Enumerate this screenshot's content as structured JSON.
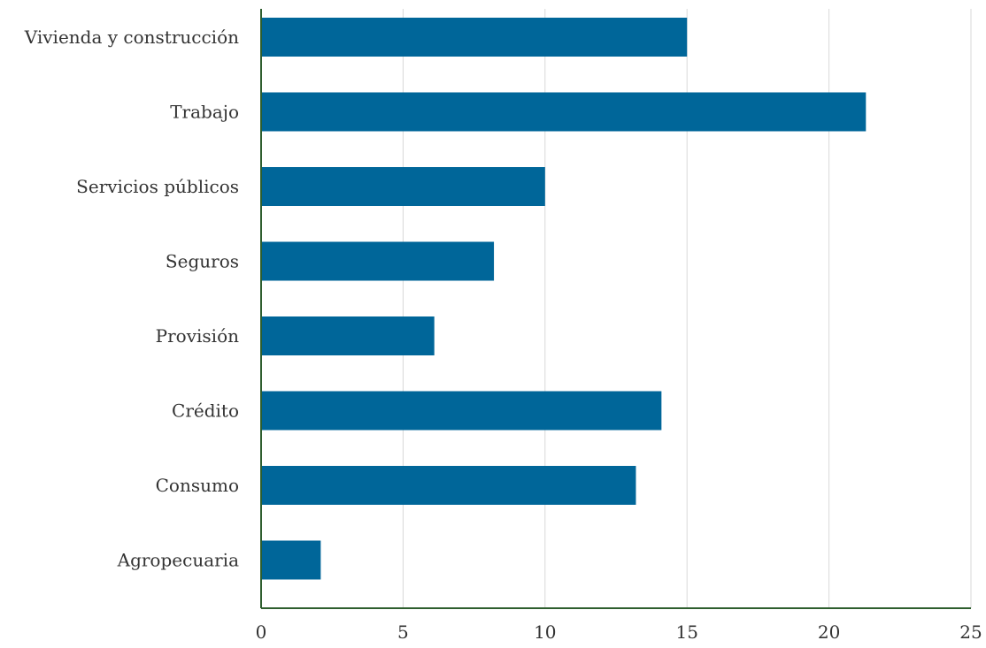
{
  "chart_data": {
    "type": "bar",
    "orientation": "horizontal",
    "title": "",
    "xlabel": "",
    "ylabel": "",
    "categories": [
      "Vivienda y construcción",
      "Trabajo",
      "Servicios públicos",
      "Seguros",
      "Provisión",
      "Crédito",
      "Consumo",
      "Agropecuaria"
    ],
    "values": [
      15.0,
      21.3,
      10.0,
      8.2,
      6.1,
      14.1,
      13.2,
      2.1
    ],
    "xlim": [
      0,
      25
    ],
    "xticks": [
      "0",
      "5",
      "10",
      "15",
      "20",
      "25"
    ],
    "grid": true,
    "legend": "none",
    "bar_color": "#006699"
  }
}
